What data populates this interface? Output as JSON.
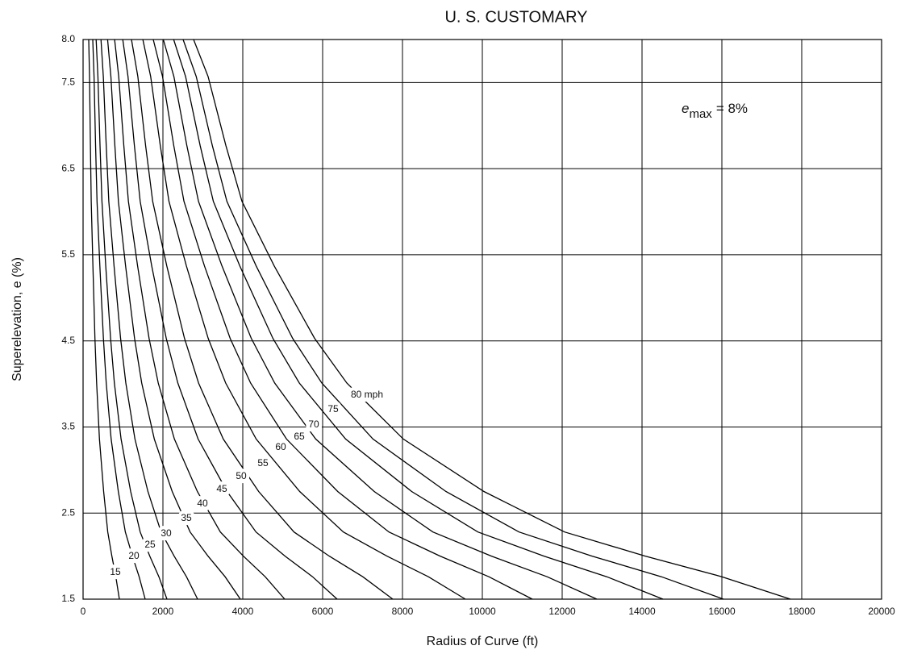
{
  "chart_data": {
    "type": "line",
    "title": "U. S. CUSTOMARY",
    "xlabel": "Radius of Curve (ft)",
    "ylabel": "Superelevation, e (%)",
    "annotation": {
      "symbol": "e",
      "subscript": "max",
      "text": "= 8%"
    },
    "xlim": [
      0,
      20000
    ],
    "xticks": [
      0,
      2000,
      4000,
      6000,
      8000,
      10000,
      12000,
      14000,
      16000,
      18000,
      20000
    ],
    "ylim": [
      1.5,
      8
    ],
    "yticks": [
      1.5,
      2.5,
      3.5,
      4.5,
      5.5,
      6.5,
      7.5,
      {
        "value": 8,
        "label": "8.0"
      }
    ],
    "grid": true,
    "color": "#000000",
    "series": [
      {
        "name": "15",
        "x": [
          142,
          161,
          183,
          204,
          246,
          297,
          339,
          411,
          515,
          619,
          722,
          821,
          909
        ],
        "values": [
          8.0,
          7.57,
          6.77,
          6.12,
          5.37,
          4.53,
          4.01,
          3.36,
          2.75,
          2.28,
          2.0,
          1.76,
          1.5
        ]
      },
      {
        "name": "20",
        "x": [
          243,
          275,
          314,
          349,
          420,
          509,
          580,
          704,
          882,
          1059,
          1236,
          1405,
          1556
        ],
        "values": [
          8.0,
          7.57,
          6.77,
          6.12,
          5.37,
          4.53,
          4.01,
          3.36,
          2.75,
          2.28,
          2.0,
          1.76,
          1.5
        ]
      },
      {
        "name": "25",
        "x": [
          328,
          371,
          424,
          472,
          568,
          688,
          783,
          951,
          1191,
          1430,
          1670,
          1898,
          2101
        ],
        "values": [
          8.0,
          7.57,
          6.77,
          6.12,
          5.37,
          4.53,
          4.01,
          3.36,
          2.75,
          2.28,
          2.0,
          1.76,
          1.5
        ]
      },
      {
        "name": "30",
        "x": [
          448,
          507,
          579,
          644,
          775,
          939,
          1070,
          1298,
          1625,
          1953,
          2280,
          2590,
          2869
        ],
        "values": [
          8.0,
          7.57,
          6.77,
          6.12,
          5.37,
          4.53,
          4.01,
          3.36,
          2.75,
          2.28,
          2.0,
          1.76,
          1.5
        ]
      },
      {
        "name": "35",
        "x": [
          615,
          696,
          795,
          885,
          1064,
          1289,
          1469,
          1783,
          2232,
          2681,
          3130,
          3557,
          3939
        ],
        "values": [
          8.0,
          7.57,
          6.77,
          6.12,
          5.37,
          4.53,
          4.01,
          3.36,
          2.75,
          2.28,
          2.0,
          1.76,
          1.5
        ]
      },
      {
        "name": "40",
        "x": [
          789,
          893,
          1020,
          1135,
          1365,
          1653,
          1883,
          2287,
          2862,
          3439,
          4015,
          4562,
          5051
        ],
        "values": [
          8.0,
          7.57,
          6.77,
          6.12,
          5.37,
          4.53,
          4.01,
          3.36,
          2.75,
          2.28,
          2.0,
          1.76,
          1.5
        ]
      },
      {
        "name": "45",
        "x": [
          994,
          1125,
          1284,
          1430,
          1720,
          2083,
          2373,
          2881,
          3606,
          4332,
          5058,
          5747,
          6364
        ],
        "values": [
          8.0,
          7.57,
          6.77,
          6.12,
          5.37,
          4.53,
          4.01,
          3.36,
          2.75,
          2.28,
          2.0,
          1.76,
          1.5
        ]
      },
      {
        "name": "50",
        "x": [
          1212,
          1371,
          1566,
          1743,
          2097,
          2539,
          2893,
          3512,
          4397,
          5282,
          6166,
          7006,
          7758
        ],
        "values": [
          8.0,
          7.57,
          6.77,
          6.12,
          5.37,
          4.53,
          4.01,
          3.36,
          2.75,
          2.28,
          2.0,
          1.76,
          1.5
        ]
      },
      {
        "name": "55",
        "x": [
          1496,
          1692,
          1933,
          2151,
          2588,
          3134,
          3571,
          4335,
          5427,
          6519,
          7611,
          8648,
          9576
        ],
        "values": [
          8.0,
          7.57,
          6.77,
          6.12,
          5.37,
          4.53,
          4.01,
          3.36,
          2.75,
          2.28,
          2.0,
          1.76,
          1.5
        ]
      },
      {
        "name": "60",
        "x": [
          1758,
          1989,
          2271,
          2528,
          3041,
          3683,
          4196,
          5094,
          6377,
          7661,
          8944,
          10163,
          11253
        ],
        "values": [
          8.0,
          7.57,
          6.77,
          6.12,
          5.37,
          4.53,
          4.01,
          3.36,
          2.75,
          2.28,
          2.0,
          1.76,
          1.5
        ]
      },
      {
        "name": "65",
        "x": [
          2011,
          2274,
          2598,
          2891,
          3478,
          4212,
          4799,
          5826,
          7293,
          8761,
          10229,
          11622,
          12869
        ],
        "values": [
          8.0,
          7.57,
          6.77,
          6.12,
          5.37,
          4.53,
          4.01,
          3.36,
          2.75,
          2.28,
          2.0,
          1.76,
          1.5
        ]
      },
      {
        "name": "70",
        "x": [
          2269,
          2567,
          2932,
          3263,
          3925,
          4753,
          5416,
          6575,
          8231,
          9888,
          11544,
          13117,
          14525
        ],
        "values": [
          8.0,
          7.57,
          6.77,
          6.12,
          5.37,
          4.53,
          4.01,
          3.36,
          2.75,
          2.28,
          2.0,
          1.76,
          1.5
        ]
      },
      {
        "name": "75",
        "x": [
          2506,
          2834,
          3237,
          3603,
          4335,
          5249,
          5980,
          7260,
          9089,
          10919,
          12748,
          14485,
          16040
        ],
        "values": [
          8.0,
          7.57,
          6.77,
          6.12,
          5.37,
          4.53,
          4.01,
          3.36,
          2.75,
          2.28,
          2.0,
          1.76,
          1.5
        ]
      },
      {
        "name": "80 mph",
        "x": [
          2768,
          3131,
          3576,
          3980,
          4788,
          5798,
          6606,
          8020,
          10040,
          12061,
          14081,
          16000,
          17717
        ],
        "values": [
          8.0,
          7.57,
          6.77,
          6.12,
          5.37,
          4.53,
          4.01,
          3.36,
          2.75,
          2.28,
          2.0,
          1.76,
          1.5
        ]
      }
    ]
  }
}
